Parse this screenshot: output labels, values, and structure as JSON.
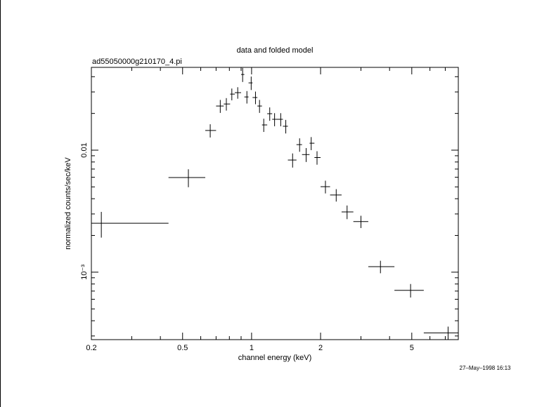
{
  "chart_data": {
    "type": "scatter",
    "title": "data and folded model",
    "subtitle": "ad55050000g210170_4.pi",
    "xlabel": "channel energy (keV)",
    "ylabel": "normalized counts/sec/keV",
    "timestamp": "27–May–1998 16:13",
    "xscale": "log",
    "yscale": "log",
    "color": "#000000",
    "xlim": [
      0.2,
      7.98
    ],
    "ylim": [
      0.00028,
      0.0477
    ],
    "xticks": [
      0.2,
      0.5,
      1,
      2,
      5
    ],
    "xminor_ticks": [
      0.3,
      0.4,
      0.6,
      0.7,
      0.8,
      0.9,
      3,
      4,
      6,
      7
    ],
    "yticks": [
      {
        "value": 0.001,
        "label": "10⁻³"
      },
      0.01
    ],
    "yminor_ticks": [
      0.0003,
      0.0004,
      0.0005,
      0.0006,
      0.0007,
      0.0008,
      0.0009,
      0.002,
      0.003,
      0.004,
      0.005,
      0.006,
      0.007,
      0.008,
      0.009,
      0.02,
      0.03,
      0.04
    ],
    "x": [
      0.221,
      0.53,
      0.66,
      0.73,
      0.776,
      0.82,
      0.87,
      0.914,
      0.954,
      0.996,
      1.04,
      1.083,
      1.13,
      1.2,
      1.26,
      1.34,
      1.41,
      1.51,
      1.62,
      1.73,
      1.82,
      1.93,
      2.1,
      2.34,
      2.61,
      3.0,
      3.65,
      4.94,
      7.2
    ],
    "bin_edges": [
      0.2,
      0.434,
      0.628,
      0.7,
      0.756,
      0.806,
      0.845,
      0.9,
      0.93,
      0.97,
      1.01,
      1.06,
      1.11,
      1.17,
      1.23,
      1.28,
      1.37,
      1.44,
      1.57,
      1.66,
      1.79,
      1.88,
      2.0,
      2.2,
      2.47,
      2.78,
      3.23,
      4.2,
      5.64,
      7.98
    ],
    "values": [
      0.00252,
      0.00597,
      0.0145,
      0.023,
      0.0239,
      0.0288,
      0.0296,
      0.0417,
      0.0273,
      0.0356,
      0.027,
      0.023,
      0.0161,
      0.0199,
      0.0179,
      0.0179,
      0.0157,
      0.0083,
      0.0111,
      0.0092,
      0.0114,
      0.0087,
      0.00502,
      0.00429,
      0.00312,
      0.0026,
      0.00111,
      0.00071,
      0.000318
    ],
    "errors": [
      0.0006,
      0.001,
      0.0018,
      0.0028,
      0.0028,
      0.0032,
      0.0032,
      0.0055,
      0.0032,
      0.0045,
      0.0032,
      0.0028,
      0.002,
      0.0025,
      0.0022,
      0.0022,
      0.002,
      0.0011,
      0.0014,
      0.0012,
      0.0014,
      0.0011,
      0.0006,
      0.0005,
      0.0004,
      0.0003,
      0.00013,
      9e-05,
      4e-05
    ]
  }
}
